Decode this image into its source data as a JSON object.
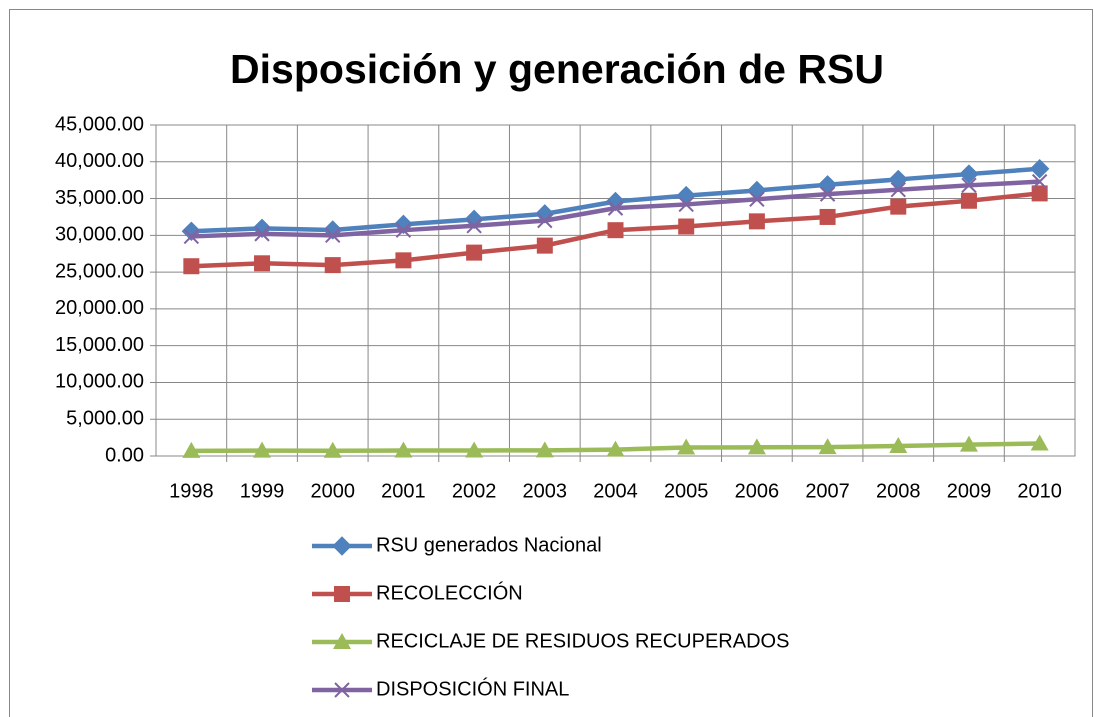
{
  "chart_data": {
    "type": "line",
    "title": "Disposición y generación de RSU",
    "categories": [
      "1998",
      "1999",
      "2000",
      "2001",
      "2002",
      "2003",
      "2004",
      "2005",
      "2006",
      "2007",
      "2008",
      "2009",
      "2010"
    ],
    "series": [
      {
        "name": "RSU generados Nacional",
        "color": "#4f81bd",
        "marker": "diamond",
        "values": [
          30550,
          30950,
          30730,
          31490,
          32170,
          32920,
          34600,
          35400,
          36100,
          36870,
          37600,
          38330,
          39050
        ]
      },
      {
        "name": "RECOLECCIÓN",
        "color": "#c0504d",
        "marker": "square",
        "values": [
          25800,
          26200,
          25950,
          26600,
          27650,
          28600,
          30700,
          31200,
          31900,
          32500,
          33900,
          34700,
          35700
        ]
      },
      {
        "name": "RECICLAJE DE RESIDUOS RECUPERADOS",
        "color": "#9bbb59",
        "marker": "triangle",
        "values": [
          700,
          730,
          720,
          740,
          750,
          770,
          870,
          1150,
          1180,
          1200,
          1360,
          1550,
          1700
        ]
      },
      {
        "name": "DISPOSICIÓN FINAL",
        "color": "#8064a2",
        "marker": "x",
        "values": [
          29850,
          30200,
          30000,
          30700,
          31300,
          32000,
          33700,
          34200,
          34900,
          35600,
          36200,
          36800,
          37300
        ]
      }
    ],
    "ylim": [
      0,
      45000
    ],
    "yticks": [
      {
        "value": 0,
        "label": "0.00"
      },
      {
        "value": 5000,
        "label": "5,000.00"
      },
      {
        "value": 10000,
        "label": "10,000.00"
      },
      {
        "value": 15000,
        "label": "15,000.00"
      },
      {
        "value": 20000,
        "label": "20,000.00"
      },
      {
        "value": 25000,
        "label": "25,000.00"
      },
      {
        "value": 30000,
        "label": "30,000.00"
      },
      {
        "value": 35000,
        "label": "35,000.00"
      },
      {
        "value": 40000,
        "label": "40,000.00"
      },
      {
        "value": 45000,
        "label": "45,000.00"
      }
    ],
    "grid": true,
    "legend": "bottom"
  }
}
